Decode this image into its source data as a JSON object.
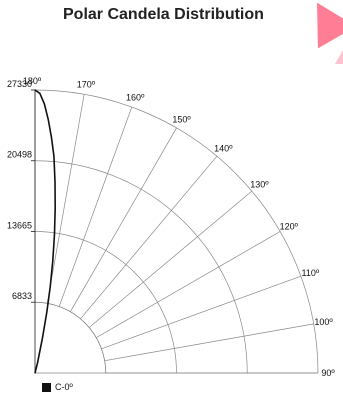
{
  "chart_data": {
    "type": "polar",
    "title": "Polar Candela Distribution",
    "radial_ticks": [
      "27330",
      "20498",
      "13665",
      "6833"
    ],
    "radial_tick_values": [
      27330,
      20498,
      13665,
      6833
    ],
    "rmax": 27330,
    "angle_ticks": [
      "180º",
      "170º",
      "160º",
      "150º",
      "140º",
      "130º",
      "120º",
      "110º",
      "100º",
      "90º"
    ],
    "angle_tick_values": [
      180,
      170,
      160,
      150,
      140,
      130,
      120,
      110,
      100,
      90
    ],
    "series": [
      {
        "name": "C-0º",
        "color": "#111111",
        "points": [
          {
            "angle": 180,
            "value": 27330
          },
          {
            "angle": 179,
            "value": 27000
          },
          {
            "angle": 178,
            "value": 26000
          },
          {
            "angle": 177,
            "value": 24500
          },
          {
            "angle": 176,
            "value": 22800
          },
          {
            "angle": 175,
            "value": 21000
          },
          {
            "angle": 174,
            "value": 18500
          },
          {
            "angle": 173,
            "value": 16000
          },
          {
            "angle": 172,
            "value": 13500
          },
          {
            "angle": 171,
            "value": 11000
          },
          {
            "angle": 170,
            "value": 8500
          },
          {
            "angle": 169,
            "value": 6000
          },
          {
            "angle": 168,
            "value": 3500
          },
          {
            "angle": 166,
            "value": 1000
          },
          {
            "angle": 160,
            "value": 0
          }
        ]
      }
    ],
    "legend": {
      "position": "bottom-left",
      "entries": [
        "C-0º"
      ]
    },
    "grid": true
  }
}
